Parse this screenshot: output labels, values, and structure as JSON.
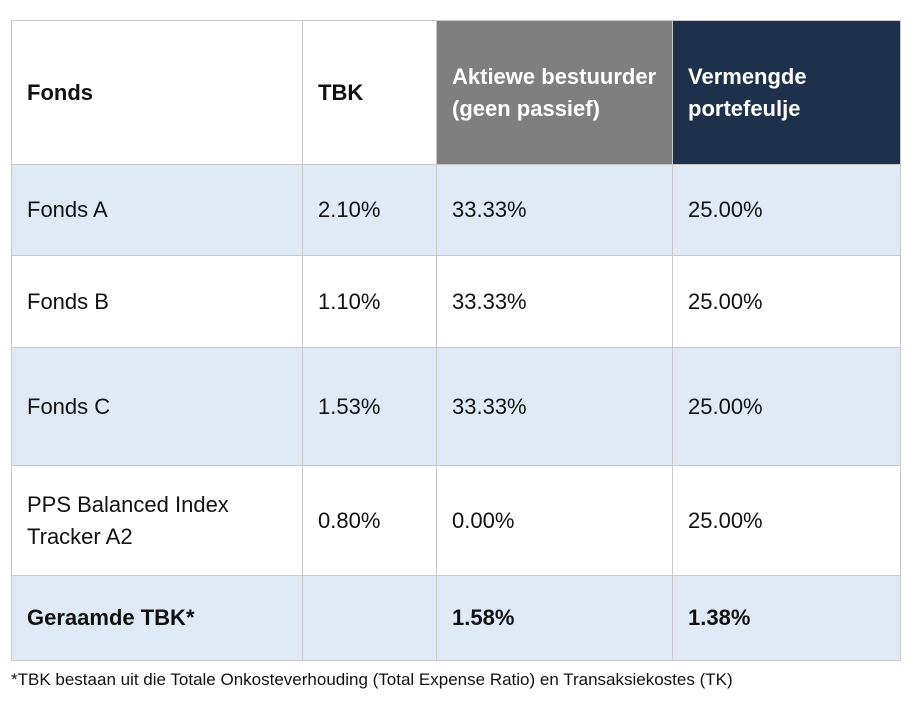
{
  "table": {
    "headers": [
      "Fonds",
      "TBK",
      "Aktiewe bestuurder (geen passief)",
      "Vermengde portefeulje"
    ],
    "rows": [
      [
        "Fonds A",
        "2.10%",
        "33.33%",
        "25.00%"
      ],
      [
        "Fonds B",
        "1.10%",
        "33.33%",
        "25.00%"
      ],
      [
        "Fonds C",
        "1.53%",
        "33.33%",
        "25.00%"
      ],
      [
        "PPS Balanced Index Tracker A2",
        "0.80%",
        "0.00%",
        "25.00%"
      ]
    ],
    "total": [
      "Geraamde TBK*",
      "",
      "1.58%",
      "1.38%"
    ]
  },
  "footnote": "*TBK bestaan uit die Totale Onkosteverhouding (Total Expense Ratio) en Transaksiekostes (TK)",
  "colors": {
    "header_gray": "#7f7f7f",
    "header_navy": "#1f304c",
    "row_blue": "#dfeaf6"
  }
}
